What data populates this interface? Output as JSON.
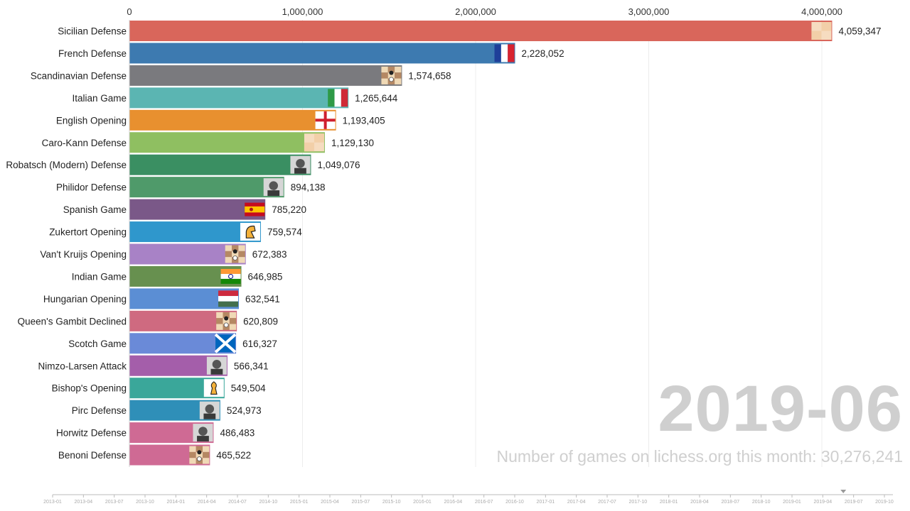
{
  "chart_data": {
    "type": "bar",
    "orientation": "horizontal",
    "categories": [
      "Sicilian Defense",
      "French Defense",
      "Scandinavian Defense",
      "Italian Game",
      "English Opening",
      "Caro-Kann Defense",
      "Robatsch (Modern) Defense",
      "Philidor Defense",
      "Spanish Game",
      "Zukertort Opening",
      "Van't Kruijs Opening",
      "Indian Game",
      "Hungarian Opening",
      "Queen's Gambit Declined",
      "Scotch Game",
      "Nimzo-Larsen Attack",
      "Bishop's Opening",
      "Pirc Defense",
      "Horwitz Defense",
      "Benoni Defense"
    ],
    "values": [
      4059347,
      2228052,
      1574658,
      1265644,
      1193405,
      1129130,
      1049076,
      894138,
      785220,
      759574,
      672383,
      646985,
      632541,
      620809,
      616327,
      566341,
      549504,
      524973,
      486483,
      465522
    ],
    "value_labels": [
      "4,059,347",
      "2,228,052",
      "1,574,658",
      "1,265,644",
      "1,193,405",
      "1,129,130",
      "1,049,076",
      "894,138",
      "785,220",
      "759,574",
      "672,383",
      "646,985",
      "632,541",
      "620,809",
      "616,327",
      "566,341",
      "549,504",
      "524,973",
      "486,483",
      "465,522"
    ],
    "colors": [
      "#d9665b",
      "#3d7ab0",
      "#7a7a7e",
      "#5bb5b2",
      "#e8902f",
      "#8fbf61",
      "#3a8f62",
      "#4f9a6a",
      "#7a5888",
      "#2f97cc",
      "#a882c6",
      "#67904f",
      "#5b8ed4",
      "#cf6a80",
      "#6a8ad8",
      "#a45eaa",
      "#3aa79a",
      "#2f8fb8",
      "#cf6a94",
      "#cf6a94"
    ],
    "icons": [
      "move-e4-c5-icon",
      "flag-france-icon",
      "chess-position-icon",
      "flag-italy-icon",
      "flag-england-icon",
      "move-e4-c6-icon",
      "player-portrait-icon",
      "player-portrait-icon",
      "flag-spain-icon",
      "knight-icon",
      "chess-position-icon",
      "flag-india-icon",
      "flag-hungary-icon",
      "chess-position-icon",
      "flag-scotland-icon",
      "player-portrait-icon",
      "bishop-icon",
      "player-portrait-icon",
      "player-portrait-icon",
      "chess-position-icon"
    ],
    "x_ticks": [
      0,
      1000000,
      2000000,
      3000000,
      4000000
    ],
    "x_tick_labels": [
      "0",
      "1,000,000",
      "2,000,000",
      "3,000,000",
      "4,000,000"
    ],
    "xlim": [
      0,
      4200000
    ],
    "grid": true
  },
  "period_label": "2019-06",
  "caption": "Number of games on lichess.org this month: 30,276,241",
  "timeline": {
    "labels": [
      "2013-01",
      "2013-04",
      "2013-07",
      "2013-10",
      "2014-01",
      "2014-04",
      "2014-07",
      "2014-10",
      "2015-01",
      "2015-04",
      "2015-07",
      "2015-10",
      "2016-01",
      "2016-04",
      "2016-07",
      "2016-10",
      "2017-01",
      "2017-04",
      "2017-07",
      "2017-10",
      "2018-01",
      "2018-04",
      "2018-07",
      "2018-10",
      "2019-01",
      "2019-04",
      "2019-07",
      "2019-10"
    ],
    "current": "2019-06"
  }
}
